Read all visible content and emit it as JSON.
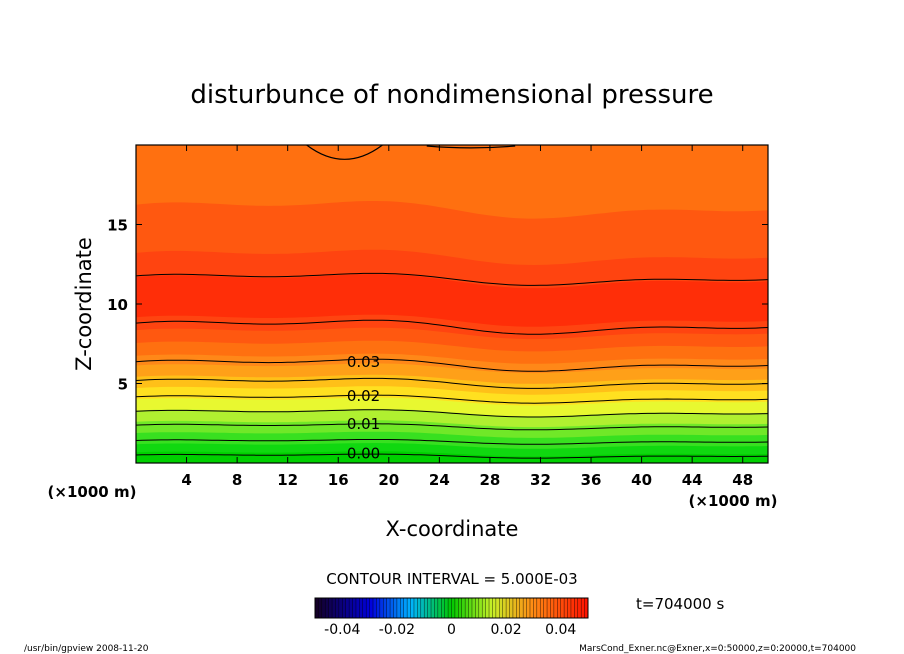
{
  "chart_data": {
    "type": "contour",
    "title": "disturbunce of nondimensional pressure",
    "xlabel": "X-coordinate",
    "ylabel": "Z-coordinate",
    "x_unit": "(×1000 m)",
    "y_unit": "(×1000 m)",
    "xlim": [
      0,
      50
    ],
    "ylim": [
      0,
      20
    ],
    "xticks": [
      4,
      8,
      12,
      16,
      20,
      24,
      28,
      32,
      36,
      40,
      44,
      48
    ],
    "yticks": [
      5,
      10,
      15
    ],
    "contour_interval_text": "CONTOUR INTERVAL = 5.000E-03",
    "contour_interval": 0.005,
    "contour_labels": [
      "0.00",
      "0.01",
      "0.02",
      "0.03"
    ],
    "colorbar": {
      "range": [
        -0.05,
        0.05
      ],
      "ticks": [
        "-0.04",
        "-0.02",
        "0",
        "0.02",
        "0.04"
      ]
    },
    "bands": [
      {
        "z_top": 0.6,
        "color": "#00d000"
      },
      {
        "z_top": 1.1,
        "color": "#10d810"
      },
      {
        "z_top": 1.8,
        "color": "#38e020"
      },
      {
        "z_top": 2.5,
        "color": "#70e828"
      },
      {
        "z_top": 3.2,
        "color": "#b0f030"
      },
      {
        "z_top": 3.9,
        "color": "#e8f830"
      },
      {
        "z_top": 4.6,
        "color": "#ffe020"
      },
      {
        "z_top": 5.3,
        "color": "#ffc018"
      },
      {
        "z_top": 6.0,
        "color": "#ffa018"
      },
      {
        "z_top": 6.6,
        "color": "#ff8818"
      },
      {
        "z_top": 7.4,
        "color": "#ff7010"
      },
      {
        "z_top": 8.2,
        "color": "#ff5810"
      },
      {
        "z_top": 9.0,
        "color": "#ff4410"
      },
      {
        "z_top": 11.5,
        "color": "#ff2e08"
      },
      {
        "z_top": 13.0,
        "color": "#ff4410"
      },
      {
        "z_top": 16.0,
        "color": "#ff5810"
      },
      {
        "z_top": 20.0,
        "color": "#ff7010"
      }
    ],
    "contour_lines": [
      {
        "z": 0.45,
        "amp": 0.1
      },
      {
        "z": 1.35,
        "amp": 0.12
      },
      {
        "z": 2.3,
        "amp": 0.15
      },
      {
        "z": 3.15,
        "amp": 0.18
      },
      {
        "z": 4.05,
        "amp": 0.2
      },
      {
        "z": 5.05,
        "amp": 0.25
      },
      {
        "z": 6.2,
        "amp": 0.3
      },
      {
        "z": 8.6,
        "amp": 0.35
      },
      {
        "z": 11.6,
        "amp": 0.3
      }
    ],
    "time_label": "t=704000 s",
    "footer_left": "/usr/bin/gpview   2008-11-20",
    "footer_right": "MarsCond_Exner.nc@Exner,x=0:50000,z=0:20000,t=704000"
  },
  "colors": {
    "plot_bg": "#ff7010",
    "line": "#000000"
  }
}
